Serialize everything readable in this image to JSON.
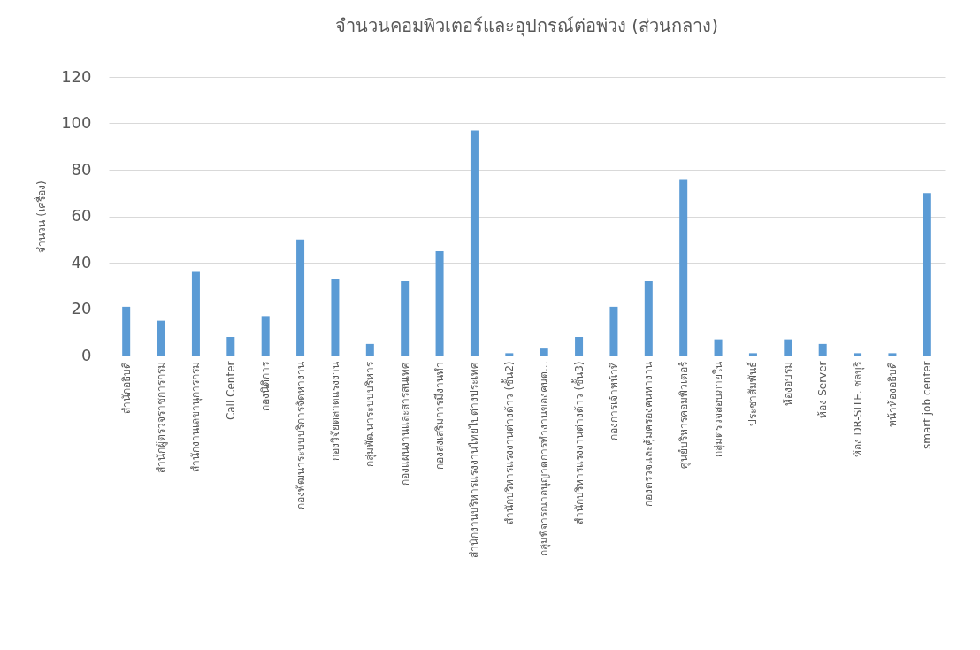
{
  "chart_data": {
    "type": "bar",
    "title": "จำนวนคอมพิวเตอร์และอุปกรณ์ต่อพ่วง (ส่วนกลาง)",
    "ylabel": "จำนวน (เครื่อง)",
    "categories": [
      "สำนักอธิบดี",
      "สำนักผู้ตรวจราชการกรม",
      "สำนักงานเลขานุการกรม",
      "Call Center",
      "กองนิติการ",
      "กองพัฒนาระบบบริการจัดหางาน",
      "กองวิจัยตลาดแรงงาน",
      "กลุ่มพัฒนาระบบบริหาร",
      "กองแผนงานและสารสนเทศ",
      "กองส่งเสริมการมีงานทำ",
      "สำนักงานบริหารแรงงานไทยไปต่างประเทศ",
      "สำนักบริหารแรงงานต่างด้าว (ชั้น2)",
      "กลุ่มพิจารณาอนุญาตการทำงานของคนต...",
      "สำนักบริหารแรงงานต่างด้าว (ชั้น3)",
      "กองการเจ้าหน้าที่",
      "กองตรวจและคุ้มครองคนหางาน",
      "ศูนย์บริหารคอมพิวเตอร์",
      "กลุ่มตรวจสอบภายใน",
      "ประชาสัมพันธ์",
      "ห้องอบรม",
      "ห้อง Server",
      "ห้อง DR-SITE. ชลบุรี",
      "หน้าห้องอธิบดี",
      "smart job center"
    ],
    "values": [
      21,
      15,
      36,
      8,
      17,
      50,
      33,
      5,
      32,
      45,
      97,
      1,
      3,
      8,
      21,
      32,
      76,
      7,
      1,
      7,
      5,
      1,
      1,
      70
    ],
    "color": "#5b9bd5",
    "ylim": [
      0,
      120
    ],
    "yticks": [
      0,
      20,
      40,
      60,
      80,
      100,
      120
    ],
    "grid": "y"
  }
}
